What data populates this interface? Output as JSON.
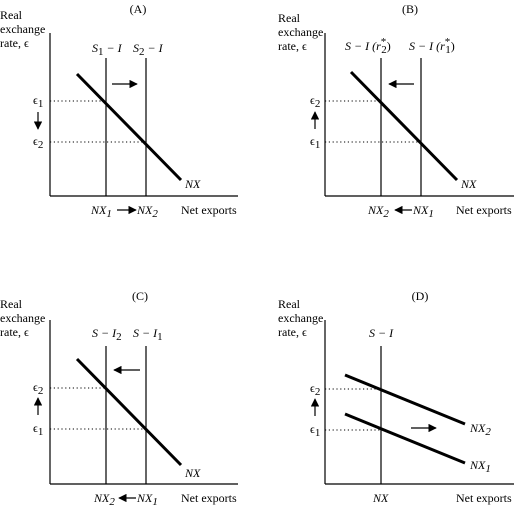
{
  "panels": [
    {
      "title": "(A)",
      "y_label": [
        "Real",
        "exchange",
        "rate, ϵ"
      ],
      "x_label": "Net exports",
      "curves": [
        {
          "kind": "vertical",
          "label_main": "S",
          "label_sub": "1",
          "label_rest": " − I"
        },
        {
          "kind": "vertical",
          "label_main": "S",
          "label_sub": "2",
          "label_rest": " − I"
        },
        {
          "kind": "sloped",
          "label_main": "NX",
          "label_sub": ""
        }
      ],
      "levels": [
        {
          "main": "ϵ",
          "sub": "1"
        },
        {
          "main": "ϵ",
          "sub": "2"
        }
      ],
      "x_ticks": [
        {
          "main": "NX",
          "sub": "1"
        },
        {
          "main": "NX",
          "sub": "2"
        }
      ],
      "shift_arrow": "right",
      "eps_arrow": "down",
      "tick_arrow": "right"
    },
    {
      "title": "(B)",
      "y_label": [
        "Real",
        "exchange",
        "rate, ϵ"
      ],
      "x_label": "Net exports",
      "curves": [
        {
          "kind": "vertical",
          "label_main": "S − I (r",
          "label_sup": "*",
          "label_sub": "2",
          "label_rest": ")"
        },
        {
          "kind": "vertical",
          "label_main": "S − I (r",
          "label_sup": "*",
          "label_sub": "1",
          "label_rest": ")"
        },
        {
          "kind": "sloped",
          "label_main": "NX",
          "label_sub": ""
        }
      ],
      "levels": [
        {
          "main": "ϵ",
          "sub": "2"
        },
        {
          "main": "ϵ",
          "sub": "1"
        }
      ],
      "x_ticks": [
        {
          "main": "NX",
          "sub": "2"
        },
        {
          "main": "NX",
          "sub": "1"
        }
      ],
      "shift_arrow": "left",
      "eps_arrow": "up",
      "tick_arrow": "left"
    },
    {
      "title": "(C)",
      "y_label": [
        "Real",
        "exchange",
        "rate, ϵ"
      ],
      "x_label": "Net exports",
      "curves": [
        {
          "kind": "vertical",
          "label_main": "S − I",
          "label_sub": "2",
          "label_rest": ""
        },
        {
          "kind": "vertical",
          "label_main": "S − I",
          "label_sub": "1",
          "label_rest": ""
        },
        {
          "kind": "sloped",
          "label_main": "NX",
          "label_sub": ""
        }
      ],
      "levels": [
        {
          "main": "ϵ",
          "sub": "2"
        },
        {
          "main": "ϵ",
          "sub": "1"
        }
      ],
      "x_ticks": [
        {
          "main": "NX",
          "sub": "2"
        },
        {
          "main": "NX",
          "sub": "1"
        }
      ],
      "shift_arrow": "left",
      "eps_arrow": "up",
      "tick_arrow": "left"
    },
    {
      "title": "(D)",
      "y_label": [
        "Real",
        "exchange",
        "rate, ϵ"
      ],
      "x_label": "Net exports",
      "curves": [
        {
          "kind": "vertical",
          "label_main": "S − I",
          "label_sub": "",
          "label_rest": ""
        },
        {
          "kind": "sloped",
          "label_main": "NX",
          "label_sub": "2"
        },
        {
          "kind": "sloped",
          "label_main": "NX",
          "label_sub": "1"
        }
      ],
      "levels": [
        {
          "main": "ϵ",
          "sub": "2"
        },
        {
          "main": "ϵ",
          "sub": "1"
        }
      ],
      "x_ticks": [
        {
          "main": "NX",
          "sub": ""
        }
      ],
      "shift_arrow": "right",
      "eps_arrow": "up",
      "tick_arrow": "none"
    }
  ]
}
